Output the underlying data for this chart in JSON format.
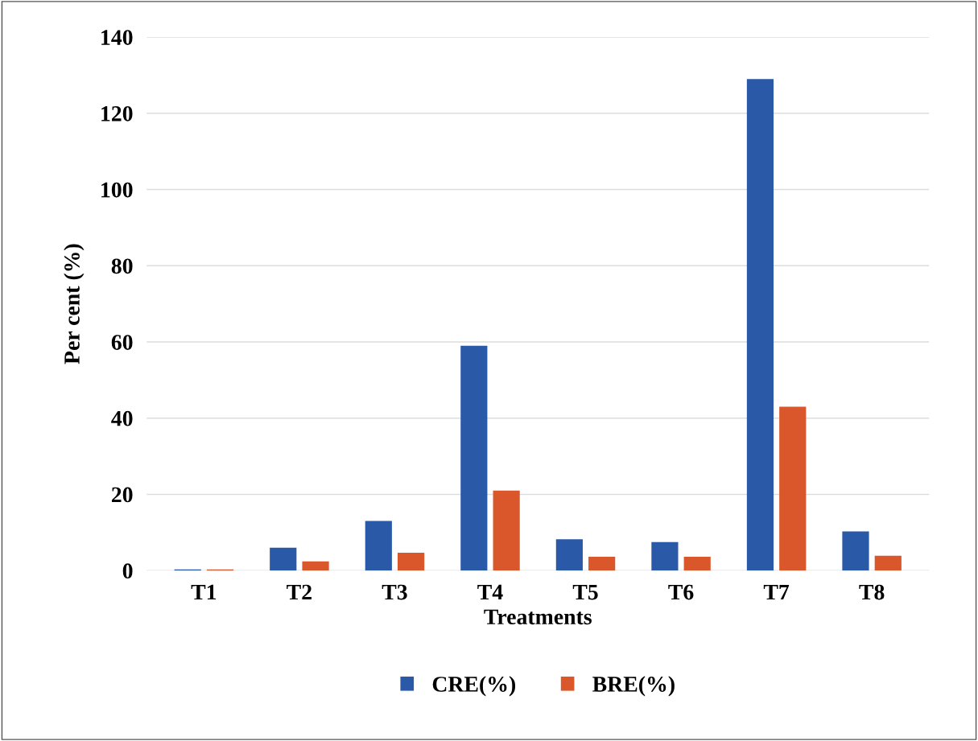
{
  "chart_data": {
    "type": "bar",
    "xlabel": "Treatments",
    "ylabel": "Per cent (%)",
    "categories": [
      "T1",
      "T2",
      "T3",
      "T4",
      "T5",
      "T6",
      "T7",
      "T8"
    ],
    "series": [
      {
        "name": "CRE(%)",
        "color": "#2a59a8",
        "values": [
          0.3,
          6,
          13,
          59,
          8.2,
          7.5,
          129,
          10.3
        ]
      },
      {
        "name": "BRE(%)",
        "color": "#d9572a",
        "values": [
          0.3,
          2.4,
          4.7,
          21,
          3.6,
          3.6,
          43,
          3.9
        ]
      }
    ],
    "ylim": [
      0,
      140
    ],
    "yticks": [
      0,
      20,
      40,
      60,
      80,
      100,
      120,
      140
    ],
    "grid": "y",
    "legend": "bottom"
  }
}
